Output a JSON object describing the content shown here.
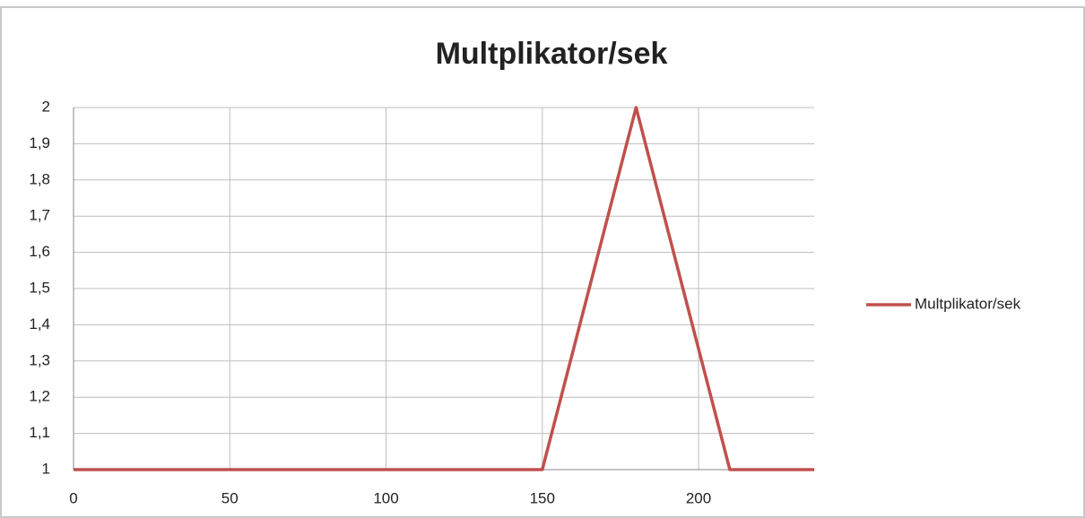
{
  "chart_data": {
    "type": "line",
    "title": "Multplikator/sek",
    "x": [
      0,
      150,
      180,
      210,
      237
    ],
    "series": [
      {
        "name": "Multplikator/sek",
        "color": "#c0504d",
        "values": [
          1,
          1,
          2,
          1,
          1
        ]
      }
    ],
    "xlim": [
      0,
      237
    ],
    "xticks": [
      0,
      50,
      100,
      150,
      200
    ],
    "ylim": [
      1,
      2
    ],
    "yticks": [
      1,
      {
        "value": 1.1,
        "label": "1,1"
      },
      {
        "value": 1.2,
        "label": "1,2"
      },
      {
        "value": 1.3,
        "label": "1,3"
      },
      {
        "value": 1.4,
        "label": "1,4"
      },
      {
        "value": 1.5,
        "label": "1,5"
      },
      {
        "value": 1.6,
        "label": "1,6"
      },
      {
        "value": 1.7,
        "label": "1,7"
      },
      {
        "value": 1.8,
        "label": "1,8"
      },
      {
        "value": 1.9,
        "label": "1,9"
      },
      2
    ],
    "grid": true,
    "legend": "right"
  }
}
